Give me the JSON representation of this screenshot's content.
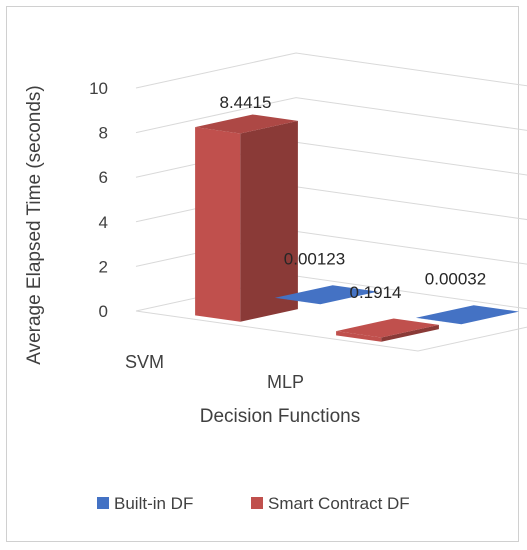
{
  "chart_data": {
    "type": "bar",
    "subtype": "3d-clustered-column",
    "title": "",
    "xlabel": "Decision Functions",
    "ylabel": "Average Elapsed Time (seconds)",
    "categories": [
      "SVM",
      "MLP"
    ],
    "yticks": [
      "0",
      "2",
      "4",
      "6",
      "8",
      "10"
    ],
    "ylim": [
      0,
      10
    ],
    "grid": true,
    "legend_position": "bottom",
    "series": [
      {
        "name": "Built-in DF",
        "color": "#4472C4",
        "values": [
          0.00123,
          0.00032
        ],
        "labels": [
          "0.00123",
          "0.00032"
        ]
      },
      {
        "name": "Smart Contract DF",
        "color": "#C0504D",
        "values": [
          8.4415,
          0.1914
        ],
        "labels": [
          "8.4415",
          "0.1914"
        ]
      }
    ]
  }
}
